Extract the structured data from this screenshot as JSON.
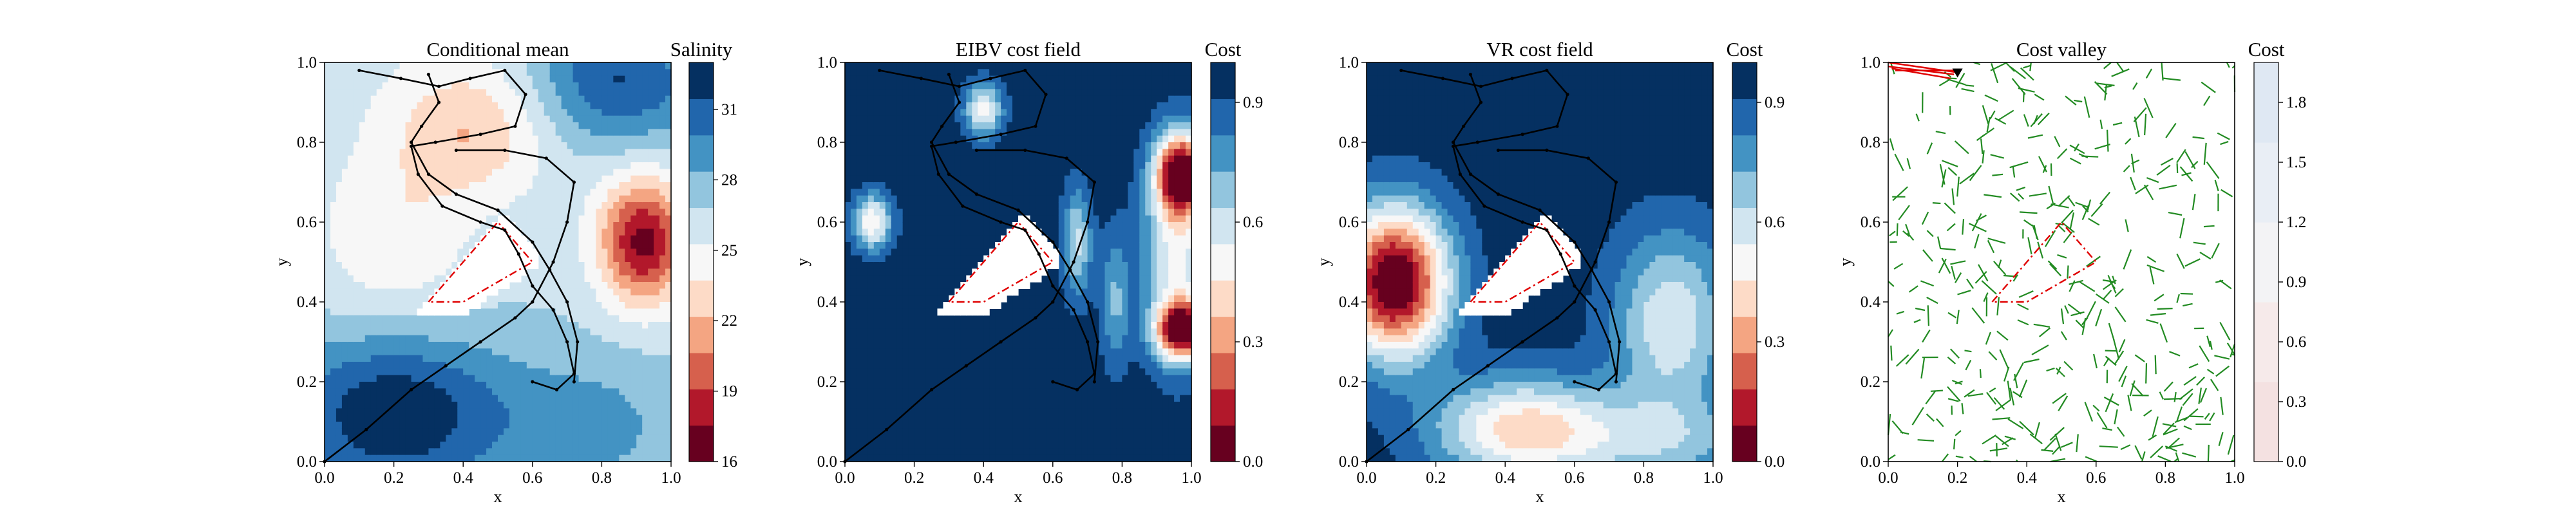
{
  "figure": {
    "background": "#ffffff"
  },
  "chart_data": [
    {
      "type": "heatmap",
      "title": "Conditional mean",
      "xlabel": "x",
      "ylabel": "y",
      "xlim": [
        0,
        1
      ],
      "ylim": [
        0,
        1
      ],
      "xticks": [
        "0.0",
        "0.2",
        "0.4",
        "0.6",
        "0.8",
        "1.0"
      ],
      "yticks": [
        "0.0",
        "0.2",
        "0.4",
        "0.6",
        "0.8",
        "1.0"
      ],
      "colorbar": {
        "label": "Salinity",
        "range": [
          16,
          33
        ],
        "ticks": [
          [
            "31",
            31
          ],
          [
            "28",
            28
          ],
          [
            "25",
            25
          ],
          [
            "22",
            22
          ],
          [
            "19",
            19
          ],
          [
            "16",
            16
          ]
        ],
        "colors": [
          "#67001f",
          "#b2182b",
          "#d6604d",
          "#f4a582",
          "#fddbc7",
          "#f7f7f7",
          "#d1e5f0",
          "#92c5de",
          "#4393c3",
          "#2166ac",
          "#053061"
        ]
      },
      "field": "salinity",
      "obstacle": [
        [
          0.3,
          0.4
        ],
        [
          0.5,
          0.6
        ],
        [
          0.6,
          0.5
        ],
        [
          0.4,
          0.4
        ]
      ],
      "paths": [
        [
          [
            0.1,
            0.98
          ],
          [
            0.22,
            0.96
          ],
          [
            0.33,
            0.94
          ],
          [
            0.42,
            0.96
          ],
          [
            0.52,
            0.98
          ],
          [
            0.58,
            0.92
          ],
          [
            0.55,
            0.84
          ],
          [
            0.45,
            0.82
          ],
          [
            0.32,
            0.8
          ],
          [
            0.25,
            0.79
          ],
          [
            0.27,
            0.72
          ],
          [
            0.34,
            0.64
          ],
          [
            0.45,
            0.6
          ],
          [
            0.52,
            0.58
          ],
          [
            0.56,
            0.52
          ],
          [
            0.6,
            0.44
          ],
          [
            0.66,
            0.38
          ],
          [
            0.7,
            0.3
          ],
          [
            0.72,
            0.22
          ],
          [
            0.67,
            0.18
          ],
          [
            0.6,
            0.2
          ]
        ],
        [
          [
            0.3,
            0.97
          ],
          [
            0.33,
            0.9
          ],
          [
            0.28,
            0.84
          ],
          [
            0.25,
            0.8
          ],
          [
            0.3,
            0.72
          ],
          [
            0.38,
            0.67
          ],
          [
            0.5,
            0.63
          ],
          [
            0.6,
            0.55
          ],
          [
            0.65,
            0.48
          ],
          [
            0.7,
            0.4
          ],
          [
            0.73,
            0.3
          ],
          [
            0.72,
            0.2
          ]
        ],
        [
          [
            0.38,
            0.78
          ],
          [
            0.52,
            0.78
          ],
          [
            0.64,
            0.76
          ],
          [
            0.72,
            0.7
          ],
          [
            0.7,
            0.6
          ],
          [
            0.66,
            0.5
          ],
          [
            0.6,
            0.4
          ],
          [
            0.55,
            0.36
          ],
          [
            0.45,
            0.3
          ],
          [
            0.35,
            0.24
          ],
          [
            0.25,
            0.18
          ],
          [
            0.12,
            0.08
          ],
          [
            0.0,
            0.0
          ]
        ]
      ]
    },
    {
      "type": "heatmap",
      "title": "EIBV cost field",
      "xlabel": "x",
      "ylabel": "y",
      "xlim": [
        0,
        1
      ],
      "ylim": [
        0,
        1
      ],
      "xticks": [
        "0.0",
        "0.2",
        "0.4",
        "0.6",
        "0.8",
        "1.0"
      ],
      "yticks": [
        "0.0",
        "0.2",
        "0.4",
        "0.6",
        "0.8",
        "1.0"
      ],
      "colorbar": {
        "label": "Cost",
        "range": [
          0,
          1
        ],
        "ticks": [
          [
            "0.9",
            0.9
          ],
          [
            "0.6",
            0.6
          ],
          [
            "0.3",
            0.3
          ],
          [
            "0.0",
            0.0
          ]
        ],
        "colors": [
          "#67001f",
          "#b2182b",
          "#d6604d",
          "#f4a582",
          "#fddbc7",
          "#f7f7f7",
          "#d1e5f0",
          "#92c5de",
          "#4393c3",
          "#2166ac",
          "#053061"
        ]
      },
      "field": "eibv",
      "obstacle": [
        [
          0.3,
          0.4
        ],
        [
          0.5,
          0.6
        ],
        [
          0.6,
          0.5
        ],
        [
          0.4,
          0.4
        ]
      ],
      "paths": [
        [
          [
            0.1,
            0.98
          ],
          [
            0.22,
            0.96
          ],
          [
            0.33,
            0.94
          ],
          [
            0.42,
            0.96
          ],
          [
            0.52,
            0.98
          ],
          [
            0.58,
            0.92
          ],
          [
            0.55,
            0.84
          ],
          [
            0.45,
            0.82
          ],
          [
            0.32,
            0.8
          ],
          [
            0.25,
            0.79
          ],
          [
            0.27,
            0.72
          ],
          [
            0.34,
            0.64
          ],
          [
            0.45,
            0.6
          ],
          [
            0.52,
            0.58
          ],
          [
            0.56,
            0.52
          ],
          [
            0.6,
            0.44
          ],
          [
            0.66,
            0.38
          ],
          [
            0.7,
            0.3
          ],
          [
            0.72,
            0.22
          ],
          [
            0.67,
            0.18
          ],
          [
            0.6,
            0.2
          ]
        ],
        [
          [
            0.3,
            0.97
          ],
          [
            0.33,
            0.9
          ],
          [
            0.28,
            0.84
          ],
          [
            0.25,
            0.8
          ],
          [
            0.3,
            0.72
          ],
          [
            0.38,
            0.67
          ],
          [
            0.5,
            0.63
          ],
          [
            0.6,
            0.55
          ],
          [
            0.65,
            0.48
          ],
          [
            0.7,
            0.4
          ],
          [
            0.73,
            0.3
          ],
          [
            0.72,
            0.2
          ]
        ],
        [
          [
            0.38,
            0.78
          ],
          [
            0.52,
            0.78
          ],
          [
            0.64,
            0.76
          ],
          [
            0.72,
            0.7
          ],
          [
            0.7,
            0.6
          ],
          [
            0.66,
            0.5
          ],
          [
            0.6,
            0.4
          ],
          [
            0.55,
            0.36
          ],
          [
            0.45,
            0.3
          ],
          [
            0.35,
            0.24
          ],
          [
            0.25,
            0.18
          ],
          [
            0.12,
            0.08
          ],
          [
            0.0,
            0.0
          ]
        ]
      ]
    },
    {
      "type": "heatmap",
      "title": "VR cost field",
      "xlabel": "x",
      "ylabel": "y",
      "xlim": [
        0,
        1
      ],
      "ylim": [
        0,
        1
      ],
      "xticks": [
        "0.0",
        "0.2",
        "0.4",
        "0.6",
        "0.8",
        "1.0"
      ],
      "yticks": [
        "0.0",
        "0.2",
        "0.4",
        "0.6",
        "0.8",
        "1.0"
      ],
      "colorbar": {
        "label": "Cost",
        "range": [
          0,
          1
        ],
        "ticks": [
          [
            "0.9",
            0.9
          ],
          [
            "0.6",
            0.6
          ],
          [
            "0.3",
            0.3
          ],
          [
            "0.0",
            0.0
          ]
        ],
        "colors": [
          "#67001f",
          "#b2182b",
          "#d6604d",
          "#f4a582",
          "#fddbc7",
          "#f7f7f7",
          "#d1e5f0",
          "#92c5de",
          "#4393c3",
          "#2166ac",
          "#053061"
        ]
      },
      "field": "vr",
      "obstacle": [
        [
          0.3,
          0.4
        ],
        [
          0.5,
          0.6
        ],
        [
          0.6,
          0.5
        ],
        [
          0.4,
          0.4
        ]
      ],
      "paths": [
        [
          [
            0.1,
            0.98
          ],
          [
            0.22,
            0.96
          ],
          [
            0.33,
            0.94
          ],
          [
            0.42,
            0.96
          ],
          [
            0.52,
            0.98
          ],
          [
            0.58,
            0.92
          ],
          [
            0.55,
            0.84
          ],
          [
            0.45,
            0.82
          ],
          [
            0.32,
            0.8
          ],
          [
            0.25,
            0.79
          ],
          [
            0.27,
            0.72
          ],
          [
            0.34,
            0.64
          ],
          [
            0.45,
            0.6
          ],
          [
            0.52,
            0.58
          ],
          [
            0.56,
            0.52
          ],
          [
            0.6,
            0.44
          ],
          [
            0.66,
            0.38
          ],
          [
            0.7,
            0.3
          ],
          [
            0.72,
            0.22
          ],
          [
            0.67,
            0.18
          ],
          [
            0.6,
            0.2
          ]
        ],
        [
          [
            0.3,
            0.97
          ],
          [
            0.33,
            0.9
          ],
          [
            0.28,
            0.84
          ],
          [
            0.25,
            0.8
          ],
          [
            0.3,
            0.72
          ],
          [
            0.38,
            0.67
          ],
          [
            0.5,
            0.63
          ],
          [
            0.6,
            0.55
          ],
          [
            0.65,
            0.48
          ],
          [
            0.7,
            0.4
          ],
          [
            0.73,
            0.3
          ],
          [
            0.72,
            0.2
          ]
        ],
        [
          [
            0.38,
            0.78
          ],
          [
            0.52,
            0.78
          ],
          [
            0.64,
            0.76
          ],
          [
            0.72,
            0.7
          ],
          [
            0.7,
            0.6
          ],
          [
            0.66,
            0.5
          ],
          [
            0.6,
            0.4
          ],
          [
            0.55,
            0.36
          ],
          [
            0.45,
            0.3
          ],
          [
            0.35,
            0.24
          ],
          [
            0.25,
            0.18
          ],
          [
            0.12,
            0.08
          ],
          [
            0.0,
            0.0
          ]
        ]
      ]
    },
    {
      "type": "scatter",
      "title": "Cost valley",
      "xlabel": "x",
      "ylabel": "y",
      "xlim": [
        0,
        1
      ],
      "ylim": [
        0,
        1
      ],
      "xticks": [
        "0.0",
        "0.2",
        "0.4",
        "0.6",
        "0.8",
        "1.0"
      ],
      "yticks": [
        "0.0",
        "0.2",
        "0.4",
        "0.6",
        "0.8",
        "1.0"
      ],
      "colorbar": {
        "label": "Cost",
        "range": [
          0,
          2
        ],
        "ticks": [
          [
            "1.8",
            1.8
          ],
          [
            "1.5",
            1.5
          ],
          [
            "1.2",
            1.2
          ],
          [
            "0.9",
            0.9
          ],
          [
            "0.6",
            0.6
          ],
          [
            "0.3",
            0.3
          ],
          [
            "0.0",
            0.0
          ]
        ],
        "colors": [
          "#f4e1e1",
          "#f6eaea",
          "#f3f3f5",
          "#e9eef5",
          "#dfe8f3"
        ]
      },
      "field": "none",
      "obstacle": [
        [
          0.3,
          0.4
        ],
        [
          0.5,
          0.6
        ],
        [
          0.6,
          0.5
        ],
        [
          0.4,
          0.4
        ]
      ],
      "tree_color": "#228b22",
      "tree_segments": 420,
      "highlight_lines": [
        [
          [
            0.0,
            1.0
          ],
          [
            0.2,
            0.975
          ]
        ],
        [
          [
            0.0,
            0.99
          ],
          [
            0.19,
            0.97
          ]
        ],
        [
          [
            0.01,
            0.985
          ],
          [
            0.18,
            0.96
          ]
        ],
        [
          [
            0.02,
            0.98
          ],
          [
            0.2,
            0.98
          ]
        ]
      ],
      "start_point": [
        0.2,
        0.975
      ]
    }
  ]
}
